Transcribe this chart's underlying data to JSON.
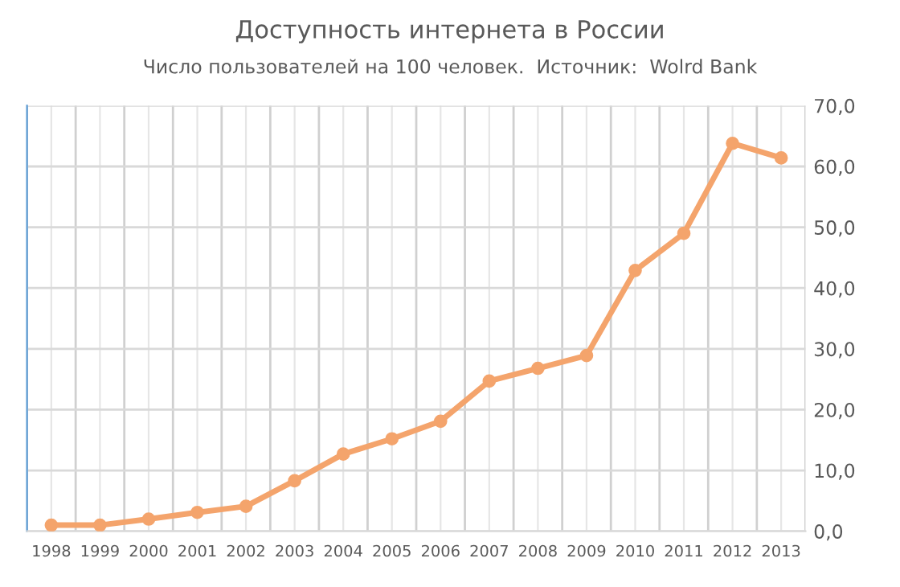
{
  "chart_data": {
    "type": "line",
    "title": "Доступность интернета в России",
    "subtitle": "Число пользователей на 100 человек.  Источник:  Wolrd Bank",
    "categories": [
      "1998",
      "1999",
      "2000",
      "2001",
      "2002",
      "2003",
      "2004",
      "2005",
      "2006",
      "2007",
      "2008",
      "2009",
      "2010",
      "2011",
      "2012",
      "2013"
    ],
    "series": [
      {
        "color": "#f4a46c",
        "values": [
          1.0,
          1.0,
          2.0,
          3.1,
          4.1,
          8.3,
          12.7,
          15.2,
          18.1,
          24.7,
          26.8,
          28.9,
          42.9,
          49.0,
          63.8,
          61.4
        ]
      }
    ],
    "ylim": [
      0,
      70
    ],
    "yticks": [
      {
        "value": 0,
        "label": "0,0"
      },
      {
        "value": 10,
        "label": "10,0"
      },
      {
        "value": 20,
        "label": "20,0"
      },
      {
        "value": 30,
        "label": "30,0"
      },
      {
        "value": 40,
        "label": "40,0"
      },
      {
        "value": 50,
        "label": "50,0"
      },
      {
        "value": 60,
        "label": "60,0"
      },
      {
        "value": 70,
        "label": "70,0"
      }
    ],
    "grid": true,
    "marker": "circle",
    "line_style": "solid",
    "legend": false
  }
}
